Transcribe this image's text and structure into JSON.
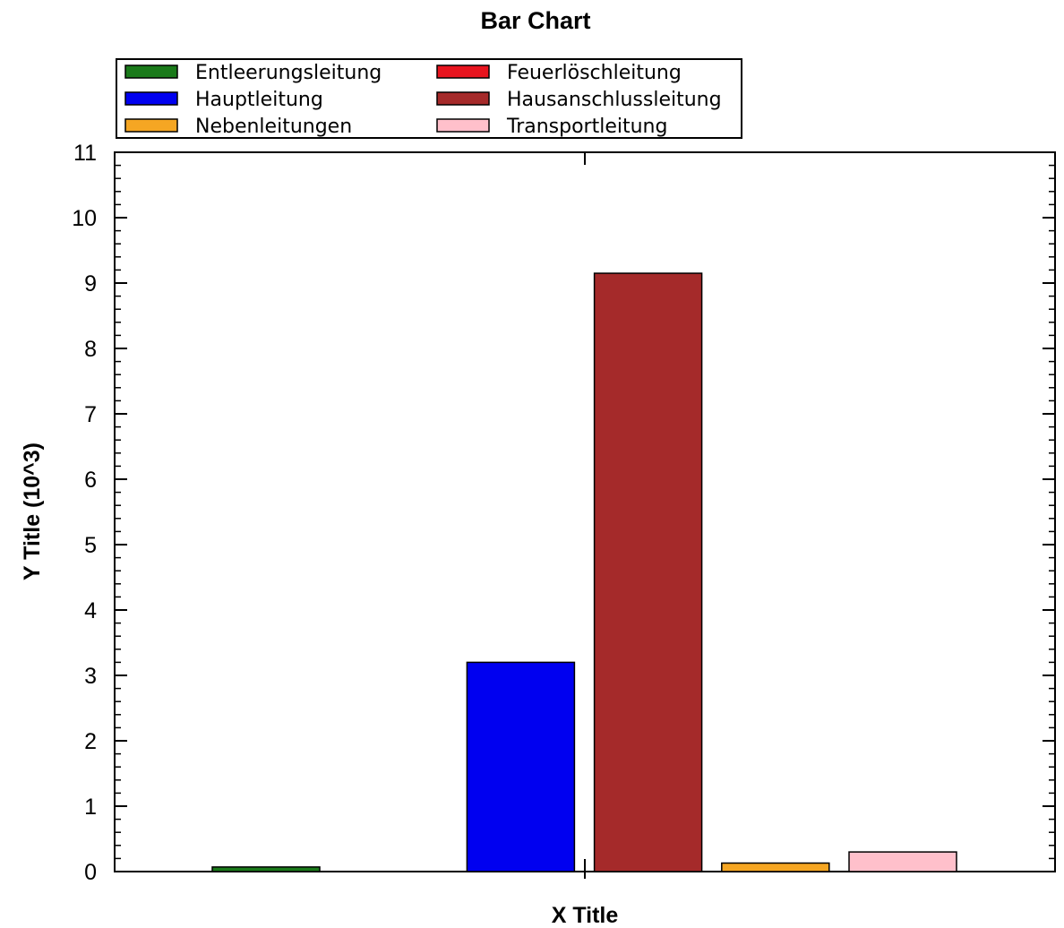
{
  "chart_data": {
    "type": "bar",
    "title": "Bar Chart",
    "xlabel": "X Title",
    "ylabel": "Y Title (10^3)",
    "ylim": [
      0,
      11
    ],
    "yticks": [
      0,
      1,
      2,
      3,
      4,
      5,
      6,
      7,
      8,
      9,
      10,
      11
    ],
    "grid": false,
    "legend_position": "top",
    "series": [
      {
        "name": "Entleerungsleitung",
        "value": 0.07,
        "color": "#1a7a1a"
      },
      {
        "name": "Feuerlöschleitung",
        "value": 0,
        "color": "#e8141e"
      },
      {
        "name": "Hauptleitung",
        "value": 3.2,
        "color": "#0000f0"
      },
      {
        "name": "Hausanschlussleitung",
        "value": 9.15,
        "color": "#a52a2a"
      },
      {
        "name": "Nebenleitungen",
        "value": 0.13,
        "color": "#f5a623"
      },
      {
        "name": "Transportleitung",
        "value": 0.3,
        "color": "#ffc0cb"
      }
    ]
  }
}
